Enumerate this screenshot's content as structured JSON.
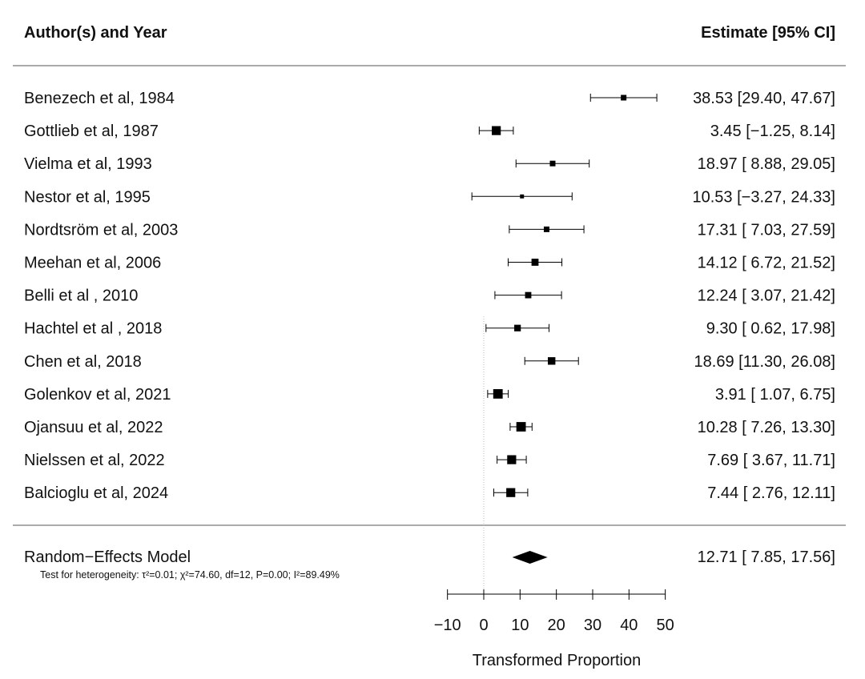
{
  "chart_data": {
    "type": "forest",
    "header": {
      "left": "Author(s) and Year",
      "right": "Estimate [95% CI]"
    },
    "studies": [
      {
        "label": "Benezech et al, 1984",
        "estimate": 38.53,
        "lower": 29.4,
        "upper": 47.67,
        "ci_text": "38.53 [29.40, 47.67]",
        "weight": 0.25
      },
      {
        "label": "Gottlieb et al, 1987",
        "estimate": 3.45,
        "lower": -1.25,
        "upper": 8.14,
        "ci_text": "3.45 [−1.25,  8.14]",
        "weight": 0.6
      },
      {
        "label": "Vielma et al, 1993",
        "estimate": 18.97,
        "lower": 8.88,
        "upper": 29.05,
        "ci_text": "18.97 [ 8.88, 29.05]",
        "weight": 0.25
      },
      {
        "label": "Nestor et al, 1995",
        "estimate": 10.53,
        "lower": -3.27,
        "upper": 24.33,
        "ci_text": "10.53 [−3.27, 24.33]",
        "weight": 0.08
      },
      {
        "label": "Nordtsröm et al, 2003",
        "estimate": 17.31,
        "lower": 7.03,
        "upper": 27.59,
        "ci_text": "17.31 [ 7.03, 27.59]",
        "weight": 0.25
      },
      {
        "label": "Meehan et al, 2006",
        "estimate": 14.12,
        "lower": 6.72,
        "upper": 21.52,
        "ci_text": "14.12 [ 6.72, 21.52]",
        "weight": 0.4
      },
      {
        "label": "Belli et al , 2010",
        "estimate": 12.24,
        "lower": 3.07,
        "upper": 21.42,
        "ci_text": "12.24 [ 3.07, 21.42]",
        "weight": 0.32
      },
      {
        "label": "Hachtel et al , 2018",
        "estimate": 9.3,
        "lower": 0.62,
        "upper": 17.98,
        "ci_text": "9.30 [ 0.62, 17.98]",
        "weight": 0.35
      },
      {
        "label": "Chen et al, 2018",
        "estimate": 18.69,
        "lower": 11.3,
        "upper": 26.08,
        "ci_text": "18.69 [11.30, 26.08]",
        "weight": 0.45
      },
      {
        "label": "Golenkov et al, 2021",
        "estimate": 3.91,
        "lower": 1.07,
        "upper": 6.75,
        "ci_text": "3.91 [ 1.07,  6.75]",
        "weight": 0.65
      },
      {
        "label": "Ojansuu et al, 2022",
        "estimate": 10.28,
        "lower": 7.26,
        "upper": 13.3,
        "ci_text": "10.28 [ 7.26, 13.30]",
        "weight": 0.65
      },
      {
        "label": "Nielssen et al, 2022",
        "estimate": 7.69,
        "lower": 3.67,
        "upper": 11.71,
        "ci_text": "7.69 [ 3.67, 11.71]",
        "weight": 0.6
      },
      {
        "label": "Balcioglu et al, 2024",
        "estimate": 7.44,
        "lower": 2.76,
        "upper": 12.11,
        "ci_text": "7.44 [ 2.76, 12.11]",
        "weight": 0.6
      }
    ],
    "summary": {
      "label": "Random−Effects Model",
      "estimate": 12.71,
      "lower": 7.85,
      "upper": 17.56,
      "ci_text": "12.71 [ 7.85, 17.56]",
      "heterogeneity": "Test for heterogeneity: τ²=0.01; χ²=74.60, df=12, P=0.00; I²=89.49%"
    },
    "xaxis": {
      "label": "Transformed Proportion",
      "ticks": [
        -10,
        0,
        10,
        20,
        30,
        40,
        50
      ],
      "tick_labels": [
        "−10",
        "0",
        "10",
        "20",
        "30",
        "40",
        "50"
      ],
      "range": [
        -10,
        50
      ],
      "reference_line": 0
    }
  }
}
